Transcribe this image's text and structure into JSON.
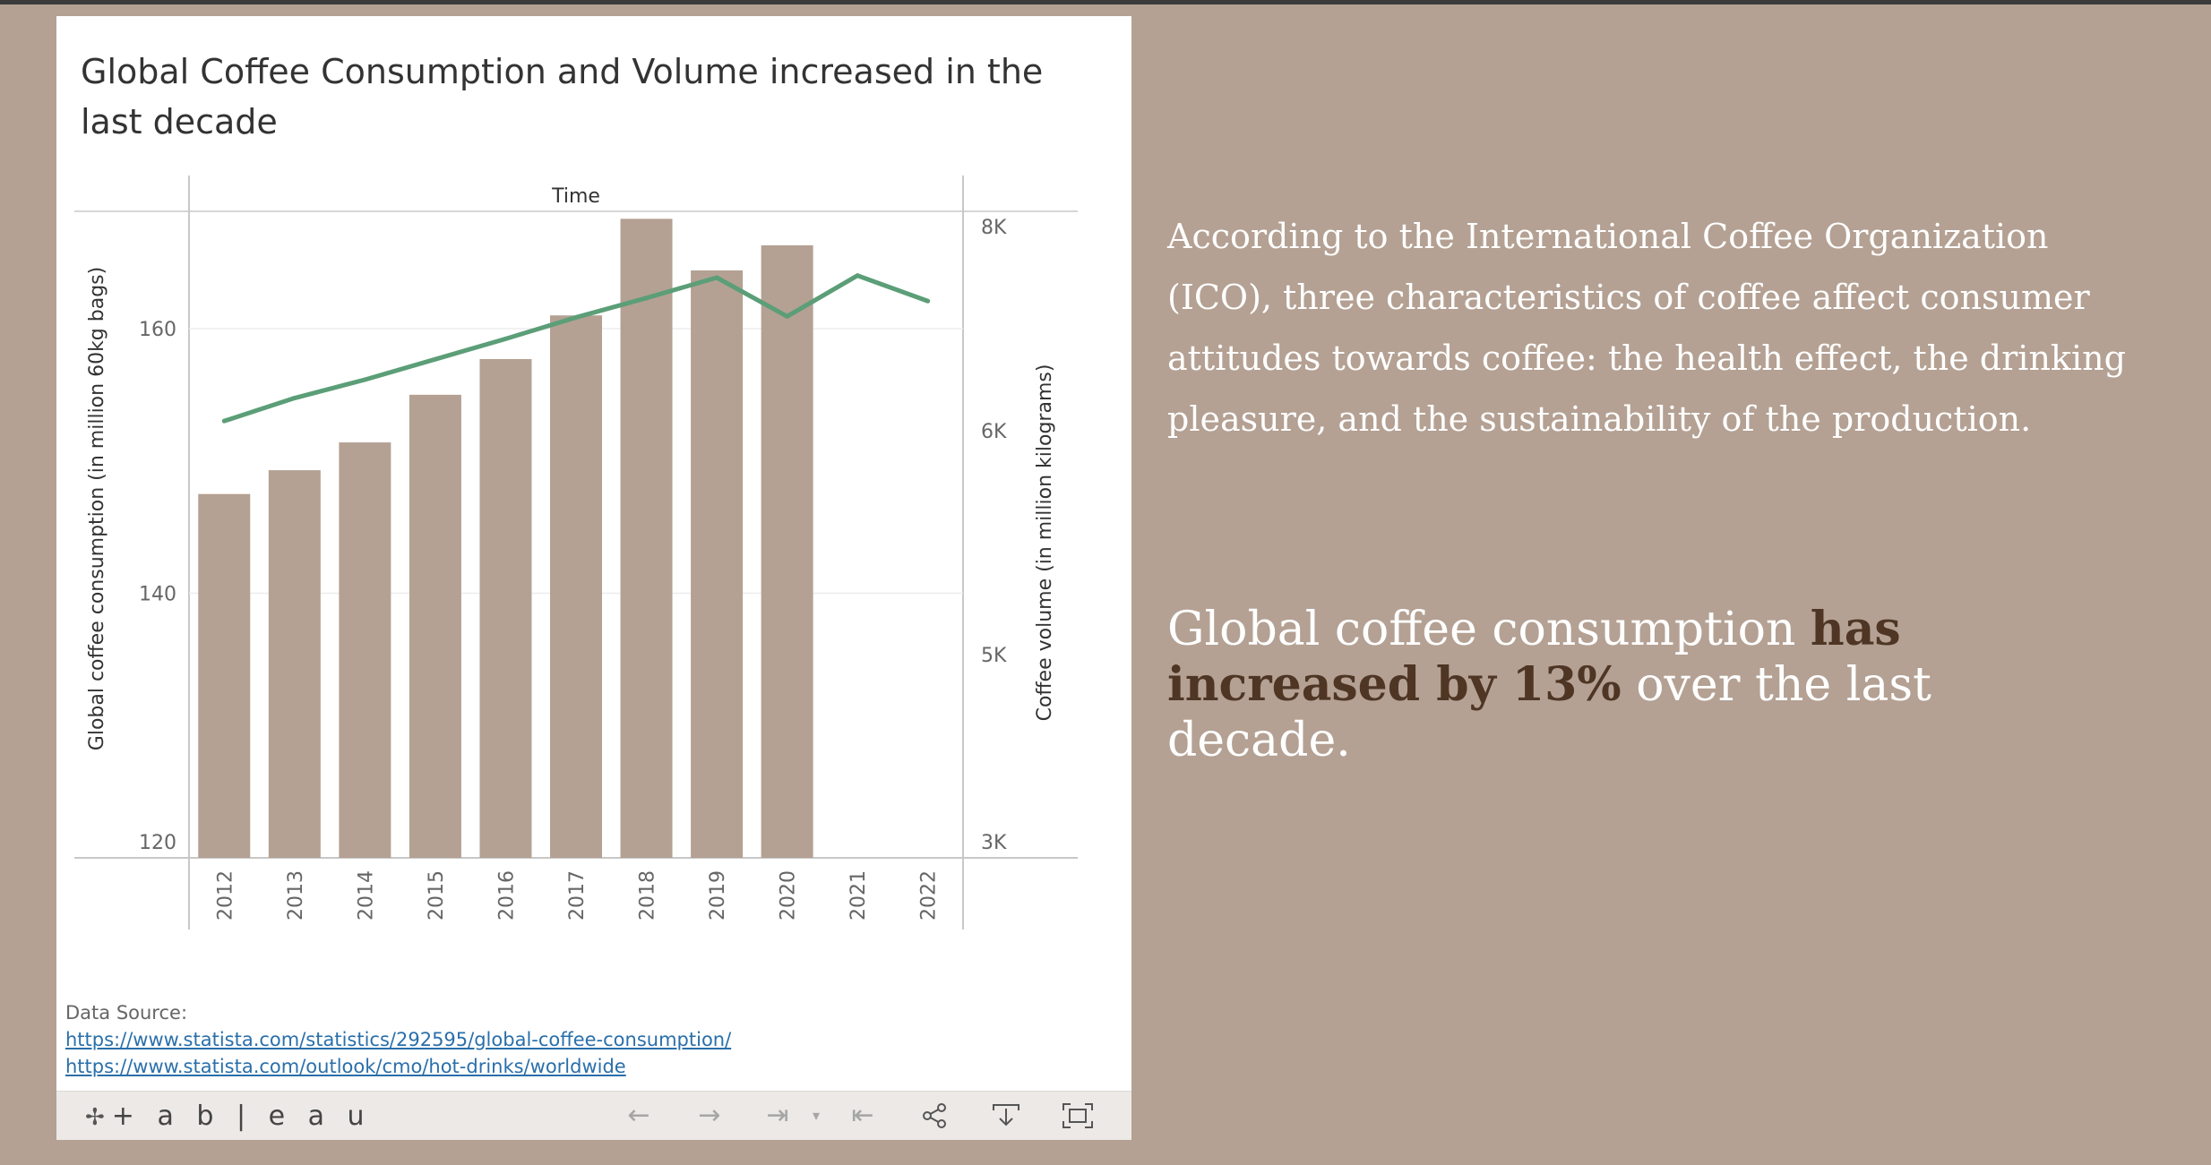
{
  "dashboard": {
    "title": "Global Coffee Consumption and Volume increased in the last decade",
    "source_label": "Data Source:",
    "source_links": [
      "https://www.statista.com/statistics/292595/global-coffee-consumption/",
      "https://www.statista.com/outlook/cmo/hot-drinks/worldwide"
    ]
  },
  "chart_data": {
    "type": "bar",
    "top_axis_label": "Time",
    "categories": [
      "2012",
      "2013",
      "2014",
      "2015",
      "2016",
      "2017",
      "2018",
      "2019",
      "2020",
      "2021",
      "2022"
    ],
    "series": [
      {
        "type": "bar",
        "axis": "left",
        "values": [
          147.5,
          149.3,
          151.4,
          155.0,
          157.7,
          161.0,
          168.3,
          164.4,
          166.3,
          null,
          null
        ],
        "color": "#b4a193"
      },
      {
        "type": "line",
        "axis": "right",
        "values": [
          6095,
          6320,
          6500,
          6700,
          6900,
          7110,
          7300,
          7500,
          7120,
          7520,
          7270
        ],
        "color": "#5b9e77"
      }
    ],
    "left_axis": {
      "label": "Global coffee consumption (in million 60kg bags)",
      "ticks": [
        120,
        140,
        160
      ],
      "tick_labels": [
        "120",
        "140",
        "160"
      ],
      "range": [
        120,
        170
      ]
    },
    "right_axis": {
      "label": "Coffee volume (in million kilograms)",
      "ticks": [
        3000,
        5000,
        6000,
        8000
      ],
      "tick_labels": [
        "3K",
        "5K",
        "6K",
        "8K"
      ]
    },
    "grid": true,
    "legend": false
  },
  "side": {
    "paragraph": "According to the International Coffee Organization (ICO), three characteristics of coffee affect consumer attitudes towards coffee: the health effect, the drinking pleasure, and the sustainability of the production.",
    "callout_pre": "Global coffee consumption ",
    "callout_emphasis": "has increased by 13%",
    "callout_post": " over the last decade."
  },
  "toolbar": {
    "logo_text": "+ a b | e a u",
    "logo_icon": "tableau-mark-icon",
    "buttons": [
      {
        "name": "undo-button",
        "icon": "arrow-left-icon",
        "glyph": "←",
        "enabled": false
      },
      {
        "name": "redo-button",
        "icon": "arrow-right-icon",
        "glyph": "→",
        "enabled": false
      },
      {
        "name": "revert-button",
        "icon": "revert-icon",
        "glyph": "⇥",
        "enabled": false
      },
      {
        "name": "revert-dropdown",
        "icon": "caret-down-icon",
        "glyph": "▾",
        "enabled": false
      },
      {
        "name": "reset-button",
        "icon": "reset-icon",
        "glyph": "⇤",
        "enabled": false
      },
      {
        "name": "share-button",
        "icon": "share-icon",
        "glyph": "⋖",
        "enabled": true
      },
      {
        "name": "download-button",
        "icon": "download-icon",
        "glyph": "⤓",
        "enabled": true
      },
      {
        "name": "fullscreen-button",
        "icon": "fullscreen-icon",
        "glyph": "⛶",
        "enabled": true
      }
    ]
  }
}
